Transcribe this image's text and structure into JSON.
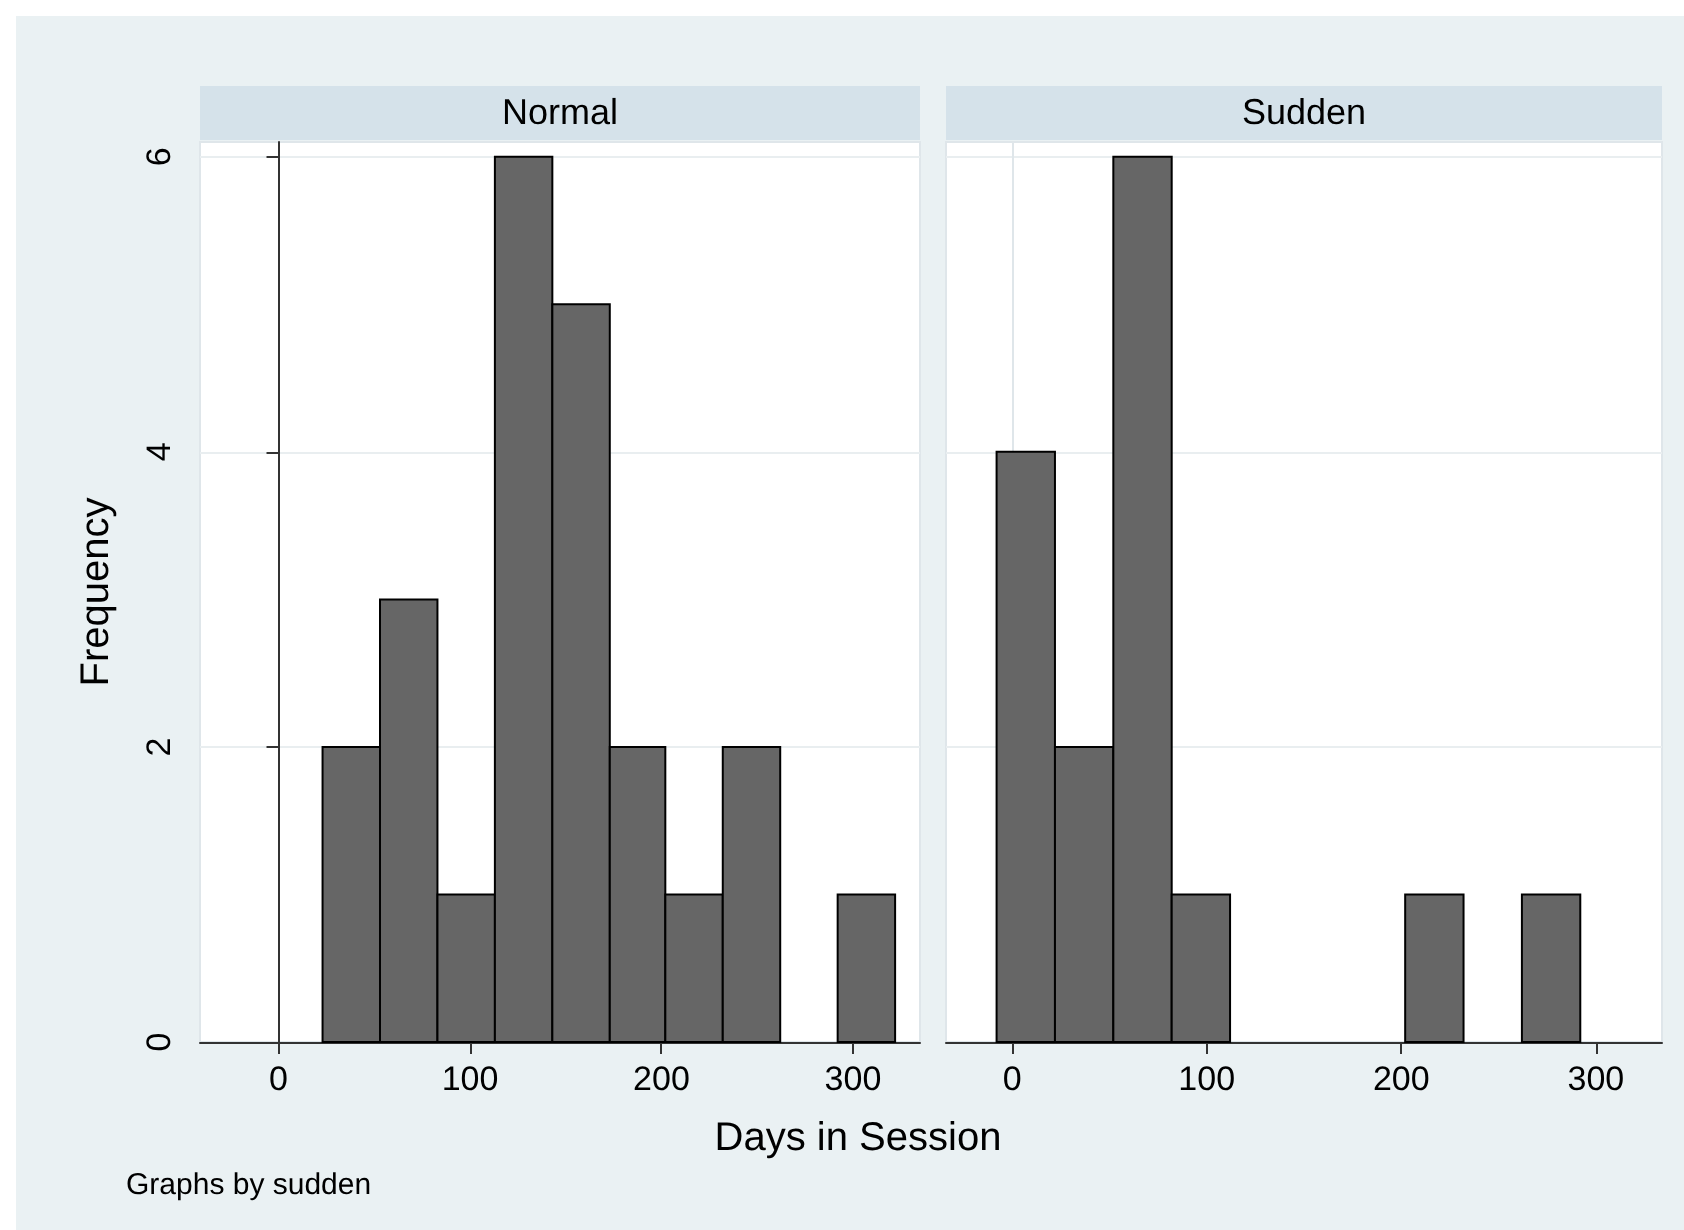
{
  "chart_data": [
    {
      "type": "histogram",
      "title": "Normal",
      "ylabel": "Frequency",
      "xlabel": "Days in Session",
      "annotations": [
        "Graphs by sudden"
      ],
      "bins": [
        23,
        53,
        83,
        113,
        143,
        173,
        202,
        232,
        262,
        292,
        322
      ],
      "values": [
        2,
        3,
        1,
        6,
        5,
        2,
        1,
        2,
        0,
        1
      ],
      "color": "#666666",
      "xlim": [
        -41,
        335
      ],
      "xticks": [
        0,
        100,
        200,
        300
      ],
      "ylim": [
        0,
        6.1
      ],
      "yticks": [
        0,
        2,
        4,
        6
      ],
      "grid": "y"
    },
    {
      "type": "histogram",
      "title": "Sudden",
      "bins": [
        -8,
        22,
        52,
        82,
        112,
        142,
        172,
        202,
        232,
        262,
        292
      ],
      "values": [
        4,
        2,
        6,
        1,
        0,
        0,
        0,
        1,
        0,
        1
      ],
      "color": "#666666",
      "xlim": [
        -34,
        334
      ],
      "xticks": [
        0,
        100,
        200,
        300
      ],
      "ylim": [
        0,
        6.1
      ],
      "yticks": [
        0,
        2,
        4,
        6
      ],
      "grid": "y",
      "tick_labels": "x"
    }
  ]
}
